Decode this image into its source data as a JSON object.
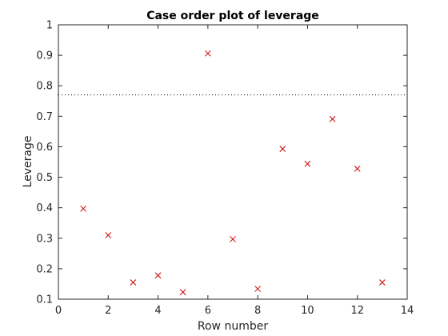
{
  "chart_data": {
    "type": "scatter",
    "title": "Case order plot of leverage",
    "xlabel": "Row number",
    "ylabel": "Leverage",
    "xlim": [
      0,
      14
    ],
    "ylim": [
      0.1,
      1
    ],
    "xticks": [
      0,
      2,
      4,
      6,
      8,
      10,
      12,
      14
    ],
    "yticks": [
      0.1,
      0.2,
      0.3,
      0.4,
      0.5,
      0.6,
      0.7,
      0.8,
      0.9,
      1
    ],
    "grid": false,
    "marker": "x",
    "marker_color": "#cc0000",
    "series": [
      {
        "x": [
          1,
          2,
          3,
          4,
          5,
          6,
          7,
          8,
          9,
          10,
          11,
          12,
          13
        ],
        "y": [
          0.397,
          0.31,
          0.155,
          0.178,
          0.123,
          0.906,
          0.297,
          0.134,
          0.593,
          0.544,
          0.691,
          0.528,
          0.155
        ]
      }
    ],
    "reference_line": {
      "y": 0.77,
      "style": "dotted",
      "color": "#000000"
    }
  }
}
